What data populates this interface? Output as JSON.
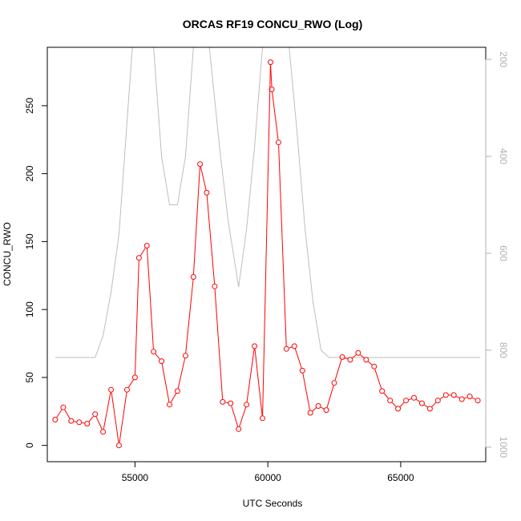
{
  "chart_data": {
    "type": "line",
    "title": "ORCAS RF19 CONCU_RWO (Log)",
    "xlabel": "UTC Seconds",
    "ylabel": "CONCU_RWO",
    "xlim": [
      51700,
      68200
    ],
    "ylim": [
      -12,
      293
    ],
    "x_ticks": [
      55000,
      60000,
      65000
    ],
    "y_ticks": [
      0,
      50,
      100,
      150,
      200,
      250
    ],
    "y2lim": [
      1030,
      175
    ],
    "y2_ticks": [
      200,
      400,
      600,
      800,
      1000
    ],
    "series": [
      {
        "color": "#ff0000",
        "marker": "open-circle",
        "axis": "left",
        "x": [
          52000,
          52300,
          52600,
          52900,
          53200,
          53500,
          53800,
          54100,
          54400,
          54700,
          55000,
          55150,
          55450,
          55700,
          56000,
          56300,
          56600,
          56900,
          57200,
          57450,
          57700,
          58000,
          58300,
          58600,
          58900,
          59200,
          59500,
          59800,
          60100,
          60150,
          60400,
          60700,
          61000,
          61300,
          61600,
          61900,
          62200,
          62500,
          62800,
          63100,
          63400,
          63700,
          64000,
          64300,
          64600,
          64900,
          65200,
          65500,
          65800,
          66100,
          66400,
          66700,
          67000,
          67300,
          67600,
          67900
        ],
        "values": [
          19,
          28,
          18,
          17,
          16,
          23,
          10,
          41,
          0,
          41,
          50,
          138,
          147,
          69,
          62,
          30,
          40,
          66,
          124,
          207,
          186,
          117,
          32,
          31,
          12,
          30,
          73,
          20,
          282,
          262,
          223,
          71,
          73,
          55,
          24,
          29,
          26,
          46,
          65,
          63,
          68,
          63,
          58,
          40,
          33,
          27,
          33,
          35,
          31,
          27,
          33,
          37,
          37,
          34,
          36,
          33
        ]
      },
      {
        "color": "#bebebe",
        "marker": "none",
        "axis": "right",
        "x": [
          52000,
          53500,
          53800,
          54100,
          54400,
          54900,
          55100,
          55700,
          56000,
          56300,
          56600,
          56900,
          57200,
          57400,
          57800,
          58200,
          58500,
          58900,
          59200,
          59500,
          59800,
          60800,
          61100,
          61400,
          61700,
          62000,
          62300,
          68000
        ],
        "values": [
          815,
          815,
          770,
          680,
          560,
          175,
          175,
          175,
          400,
          500,
          500,
          400,
          175,
          175,
          175,
          390,
          530,
          670,
          550,
          380,
          175,
          175,
          350,
          550,
          700,
          800,
          815,
          815
        ]
      }
    ]
  }
}
